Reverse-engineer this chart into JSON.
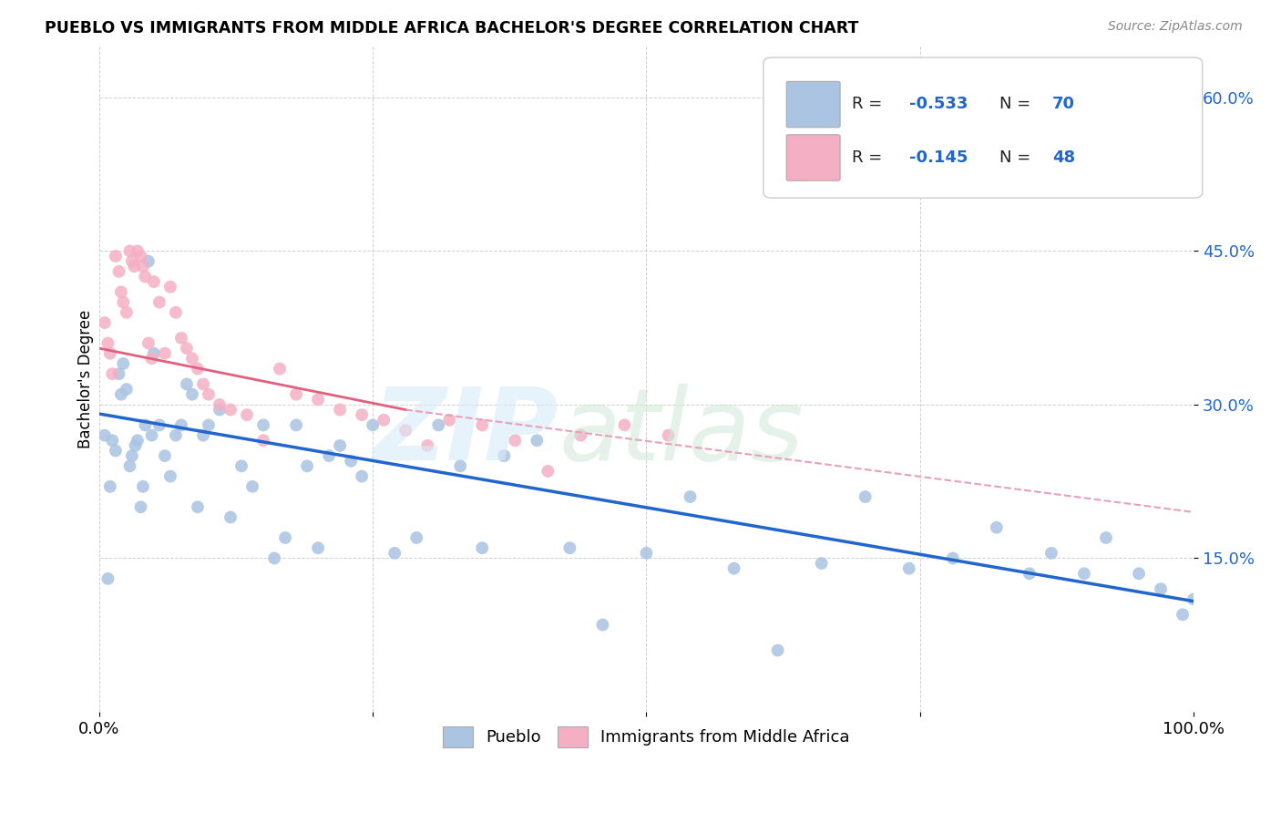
{
  "title": "PUEBLO VS IMMIGRANTS FROM MIDDLE AFRICA BACHELOR'S DEGREE CORRELATION CHART",
  "source": "Source: ZipAtlas.com",
  "ylabel": "Bachelor's Degree",
  "xlim": [
    0,
    1.0
  ],
  "ylim": [
    0,
    0.65
  ],
  "x_ticks": [
    0.0,
    0.25,
    0.5,
    0.75,
    1.0
  ],
  "x_tick_labels": [
    "0.0%",
    "",
    "",
    "",
    "100.0%"
  ],
  "y_ticks": [
    0.15,
    0.3,
    0.45,
    0.6
  ],
  "y_tick_labels": [
    "15.0%",
    "30.0%",
    "45.0%",
    "60.0%"
  ],
  "pueblo_color": "#aac4e2",
  "immigrants_color": "#f5afc5",
  "pueblo_line_color": "#2166cc",
  "immigrants_line_color": "#e06080",
  "immigrants_line_dashed_color": "#e8a0b8",
  "legend_blue": "#2166cc",
  "pueblo_R": -0.533,
  "pueblo_N": 70,
  "immigrants_R": -0.145,
  "immigrants_N": 48,
  "pueblo_scatter_x": [
    0.005,
    0.008,
    0.01,
    0.012,
    0.015,
    0.018,
    0.02,
    0.022,
    0.025,
    0.028,
    0.03,
    0.033,
    0.035,
    0.038,
    0.04,
    0.042,
    0.045,
    0.048,
    0.05,
    0.055,
    0.06,
    0.065,
    0.07,
    0.075,
    0.08,
    0.085,
    0.09,
    0.095,
    0.1,
    0.11,
    0.12,
    0.13,
    0.14,
    0.15,
    0.16,
    0.17,
    0.18,
    0.19,
    0.2,
    0.21,
    0.22,
    0.23,
    0.24,
    0.25,
    0.27,
    0.29,
    0.31,
    0.33,
    0.35,
    0.37,
    0.4,
    0.43,
    0.46,
    0.5,
    0.54,
    0.58,
    0.62,
    0.66,
    0.7,
    0.74,
    0.78,
    0.82,
    0.85,
    0.87,
    0.9,
    0.92,
    0.95,
    0.97,
    0.99,
    1.0
  ],
  "pueblo_scatter_y": [
    0.27,
    0.13,
    0.22,
    0.265,
    0.255,
    0.33,
    0.31,
    0.34,
    0.315,
    0.24,
    0.25,
    0.26,
    0.265,
    0.2,
    0.22,
    0.28,
    0.44,
    0.27,
    0.35,
    0.28,
    0.25,
    0.23,
    0.27,
    0.28,
    0.32,
    0.31,
    0.2,
    0.27,
    0.28,
    0.295,
    0.19,
    0.24,
    0.22,
    0.28,
    0.15,
    0.17,
    0.28,
    0.24,
    0.16,
    0.25,
    0.26,
    0.245,
    0.23,
    0.28,
    0.155,
    0.17,
    0.28,
    0.24,
    0.16,
    0.25,
    0.265,
    0.16,
    0.085,
    0.155,
    0.21,
    0.14,
    0.06,
    0.145,
    0.21,
    0.14,
    0.15,
    0.18,
    0.135,
    0.155,
    0.135,
    0.17,
    0.135,
    0.12,
    0.095,
    0.11
  ],
  "immigrants_scatter_x": [
    0.005,
    0.008,
    0.01,
    0.012,
    0.015,
    0.018,
    0.02,
    0.022,
    0.025,
    0.028,
    0.03,
    0.032,
    0.035,
    0.038,
    0.04,
    0.042,
    0.045,
    0.048,
    0.05,
    0.055,
    0.06,
    0.065,
    0.07,
    0.075,
    0.08,
    0.085,
    0.09,
    0.095,
    0.1,
    0.11,
    0.12,
    0.135,
    0.15,
    0.165,
    0.18,
    0.2,
    0.22,
    0.24,
    0.26,
    0.28,
    0.3,
    0.32,
    0.35,
    0.38,
    0.41,
    0.44,
    0.48,
    0.52
  ],
  "immigrants_scatter_y": [
    0.38,
    0.36,
    0.35,
    0.33,
    0.445,
    0.43,
    0.41,
    0.4,
    0.39,
    0.45,
    0.44,
    0.435,
    0.45,
    0.445,
    0.435,
    0.425,
    0.36,
    0.345,
    0.42,
    0.4,
    0.35,
    0.415,
    0.39,
    0.365,
    0.355,
    0.345,
    0.335,
    0.32,
    0.31,
    0.3,
    0.295,
    0.29,
    0.265,
    0.335,
    0.31,
    0.305,
    0.295,
    0.29,
    0.285,
    0.275,
    0.26,
    0.285,
    0.28,
    0.265,
    0.235,
    0.27,
    0.28,
    0.27
  ],
  "pueblo_trend": [
    0.0,
    1.0,
    0.291,
    0.108
  ],
  "immigrants_trend_solid": [
    0.0,
    0.28,
    0.355,
    0.295
  ],
  "immigrants_trend_dashed": [
    0.28,
    1.0,
    0.295,
    0.195
  ]
}
